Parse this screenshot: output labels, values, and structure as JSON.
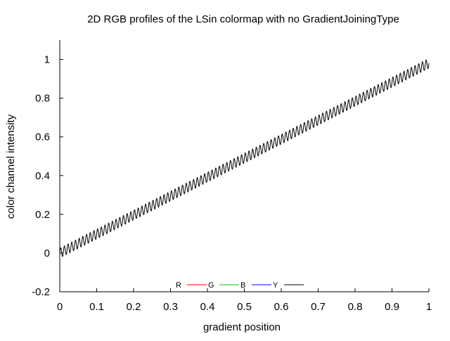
{
  "chart_data": {
    "type": "line",
    "title": "2D RGB profiles of the LSin colormap with no GradientJoiningType",
    "xlabel": "gradient position",
    "ylabel": "color channel intensity",
    "xlim": [
      0,
      1
    ],
    "ylim": [
      -0.2,
      1.1
    ],
    "x_ticks": [
      "0",
      "0.1",
      "0.2",
      "0.3",
      "0.4",
      "0.5",
      "0.6",
      "0.7",
      "0.8",
      "0.9",
      "1"
    ],
    "y_ticks": [
      "-0.2",
      "0",
      "0.2",
      "0.4",
      "0.6",
      "0.8",
      "1"
    ],
    "x_tick_values": [
      0,
      0.1,
      0.2,
      0.3,
      0.4,
      0.5,
      0.6,
      0.7,
      0.8,
      0.9,
      1
    ],
    "y_tick_values": [
      -0.2,
      0,
      0.2,
      0.4,
      0.6,
      0.8,
      1
    ],
    "grid": false,
    "legend_position": "bottom-center",
    "series": [
      {
        "name": "R",
        "color": "#ff0000",
        "visible_in_plot": false
      },
      {
        "name": "G",
        "color": "#00c000",
        "visible_in_plot": false
      },
      {
        "name": "B",
        "color": "#0000ff",
        "visible_in_plot": false
      },
      {
        "name": "Y",
        "color": "#000000",
        "visible_in_plot": true,
        "shape": "linear ramp with sinusoidal ripple",
        "start_value": 0,
        "end_value": 0.98,
        "ripple_amplitude": 0.025,
        "ripple_cycles": 100
      }
    ]
  }
}
